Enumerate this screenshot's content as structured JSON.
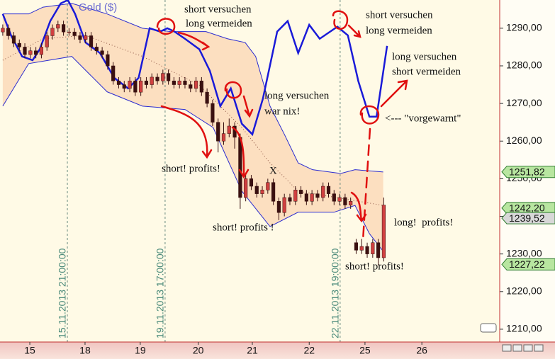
{
  "chart_data": {
    "type": "candlestick",
    "title": "Gold ($)",
    "open": [
      1289,
      1290,
      1288,
      1286,
      1285,
      1283,
      1284,
      1283,
      1285,
      1288,
      1290,
      1291,
      1289,
      1289,
      1288,
      1287,
      1288,
      1285,
      1284,
      1283,
      1280,
      1276,
      1275,
      1274,
      1276,
      1273,
      1276,
      1275,
      1277,
      1276,
      1278,
      1276,
      1275,
      1276,
      1275,
      1274,
      1276,
      1273,
      1270,
      1265,
      1260,
      1262,
      1264,
      1261,
      1245,
      1250,
      1248,
      1246,
      1247,
      1249,
      1244,
      1241,
      1245,
      1244,
      1247,
      1246,
      1244,
      1246,
      1245,
      1248,
      1246,
      1244,
      1245,
      1243,
      1233,
      1231,
      1232,
      1230,
      1233,
      1229
    ],
    "high": [
      1291,
      1291,
      1289,
      1287,
      1286,
      1285,
      1285,
      1286,
      1289,
      1291,
      1292,
      1292,
      1290,
      1290,
      1289,
      1289,
      1289,
      1286,
      1285,
      1284,
      1281,
      1277,
      1276,
      1277,
      1277,
      1277,
      1277,
      1278,
      1278,
      1279,
      1279,
      1277,
      1277,
      1277,
      1276,
      1277,
      1277,
      1274,
      1271,
      1266,
      1265,
      1266,
      1265,
      1262,
      1251,
      1251,
      1249,
      1248,
      1250,
      1250,
      1245,
      1246,
      1246,
      1248,
      1248,
      1247,
      1247,
      1247,
      1249,
      1249,
      1247,
      1246,
      1246,
      1245,
      1234,
      1234,
      1233,
      1234,
      1234,
      1245
    ],
    "low": [
      1288,
      1287,
      1285,
      1284,
      1282,
      1282,
      1282,
      1282,
      1284,
      1287,
      1289,
      1288,
      1288,
      1287,
      1286,
      1286,
      1284,
      1283,
      1282,
      1279,
      1275,
      1274,
      1273,
      1273,
      1272,
      1272,
      1274,
      1274,
      1275,
      1275,
      1275,
      1274,
      1274,
      1274,
      1273,
      1273,
      1272,
      1269,
      1264,
      1257,
      1259,
      1261,
      1258,
      1242,
      1244,
      1247,
      1245,
      1245,
      1246,
      1243,
      1239,
      1240,
      1243,
      1243,
      1245,
      1243,
      1243,
      1244,
      1244,
      1245,
      1243,
      1243,
      1242,
      1242,
      1230,
      1230,
      1229,
      1229,
      1227,
      1228
    ],
    "close": [
      1290,
      1288,
      1286,
      1285,
      1283,
      1284,
      1283,
      1285,
      1288,
      1290,
      1291,
      1289,
      1289,
      1288,
      1287,
      1288,
      1285,
      1284,
      1283,
      1280,
      1276,
      1275,
      1274,
      1276,
      1273,
      1276,
      1275,
      1277,
      1276,
      1278,
      1276,
      1275,
      1276,
      1275,
      1274,
      1276,
      1273,
      1270,
      1265,
      1260,
      1262,
      1264,
      1261,
      1245,
      1250,
      1248,
      1246,
      1247,
      1249,
      1244,
      1241,
      1245,
      1244,
      1247,
      1246,
      1244,
      1246,
      1245,
      1248,
      1246,
      1244,
      1245,
      1243,
      1244,
      1231,
      1232,
      1230,
      1233,
      1229,
      1243
    ],
    "up_color": "#d04040",
    "down_color": "#3a1010",
    "lines": [
      {
        "color": "#2b2bd0",
        "x": [
          0,
          4.7,
          7.3,
          12.5,
          18.9,
          25.3,
          30.4,
          36.8,
          40.7,
          43.9,
          45.8,
          48.4,
          51,
          53.5,
          56.1,
          61.2,
          63.8,
          68.9
        ],
        "values": [
          1293.8,
          1293.8,
          1295.6,
          1296.6,
          1293.8,
          1290,
          1289.1,
          1289.1,
          1287.2,
          1286.2,
          1282.5,
          1269.3,
          1261.8,
          1254.2,
          1252.4,
          1251.4,
          1252.4,
          1251.8
        ]
      },
      {
        "color": "#2b2bd0",
        "x": [
          0,
          4.7,
          12.5,
          18.9,
          25.3,
          33,
          38.1,
          43.3,
          48.4,
          53.5,
          60,
          63.8,
          66.4,
          68.9
        ],
        "values": [
          1269.3,
          1280.6,
          1282.5,
          1273.1,
          1269.3,
          1268.4,
          1263.6,
          1246.7,
          1237.3,
          1241.1,
          1241.1,
          1242.9,
          1235.4,
          1230.7
        ]
      },
      {
        "color": "#8a5040",
        "dotted": true,
        "x": [
          0,
          7.3,
          15,
          25.3,
          35.6,
          43.3,
          48.4,
          53.5,
          61.2,
          68.9
        ],
        "values": [
          1281.5,
          1287.2,
          1288.1,
          1282.5,
          1274.9,
          1263.6,
          1254.2,
          1246.7,
          1244.8,
          1242.9
        ]
      },
      {
        "color": "#1a1ad8",
        "width": 2.5,
        "x": [
          0,
          1.5,
          3.5,
          5.4,
          6.7,
          8.6,
          10.5,
          11.8,
          13.1,
          15,
          17.6,
          20.2,
          22.7,
          24.6,
          26.6,
          28.5,
          29.8,
          31.1,
          33,
          35.6,
          37.5,
          39.4,
          41.3,
          43.3,
          45.2,
          47.1,
          49.7,
          51.6,
          53.5,
          55.5,
          57.4,
          59.3,
          60.6,
          62.5,
          64.4,
          66.4,
          67.7,
          69.6
        ],
        "values": [
          1293.8,
          1288.1,
          1282.5,
          1281.5,
          1284.4,
          1291.9,
          1296.6,
          1297.5,
          1293.8,
          1286.2,
          1283.4,
          1276.8,
          1274,
          1276.8,
          1290,
          1289.1,
          1290,
          1289.1,
          1287.2,
          1284.4,
          1278.7,
          1269.3,
          1274,
          1264.6,
          1261.8,
          1271.2,
          1289.1,
          1291.9,
          1283.4,
          1290.9,
          1287.2,
          1289.1,
          1290.4,
          1288.1,
          1275.9,
          1266.5,
          1266.5,
          1285.3
        ]
      }
    ],
    "band_fill": "#fbd9b8",
    "xlim": [
      -0.5,
      90
    ],
    "ylim": [
      1206.6,
      1297.5
    ],
    "yticks": [
      {
        "value": 1210,
        "label": "1210,00"
      },
      {
        "value": 1220,
        "label": "1220,00"
      },
      {
        "value": 1230,
        "label": "1230,00"
      },
      {
        "value": 1240,
        "label": "1240,00"
      },
      {
        "value": 1250,
        "label": "1250,00"
      },
      {
        "value": 1260,
        "label": "1260,00"
      },
      {
        "value": 1270,
        "label": "1270,00"
      },
      {
        "value": 1280,
        "label": "1280,00"
      },
      {
        "value": 1290,
        "label": "1290,00"
      }
    ],
    "xticks": [
      {
        "value": 4.9,
        "label": "15"
      },
      {
        "value": 14.9,
        "label": "18"
      },
      {
        "value": 24.9,
        "label": "19"
      },
      {
        "value": 35.4,
        "label": "20"
      },
      {
        "value": 45.2,
        "label": "21"
      },
      {
        "value": 55.5,
        "label": "22"
      },
      {
        "value": 65.6,
        "label": "25"
      },
      {
        "value": 75.9,
        "label": "26"
      }
    ],
    "vlines": [
      {
        "x": 11.7,
        "label": "15.11.2013 21:00:00"
      },
      {
        "x": 29.4,
        "label": "19.11.2013 17:00:00"
      },
      {
        "x": 61.1,
        "label": "22.11.2013 19:00:00"
      }
    ],
    "price_tags": [
      {
        "value": 1251.82,
        "label": "1251,82",
        "color": "#b8e6a0"
      },
      {
        "value": 1242.2,
        "label": "1242,20",
        "color": "#b8e6a0"
      },
      {
        "value": 1239.52,
        "label": "1239,52",
        "color": "#d8d8d8"
      },
      {
        "value": 1227.22,
        "label": "1227,22",
        "color": "#b8e6a0"
      }
    ],
    "annotations": [
      "short versuchen",
      "long vermeiden",
      "short versuchen",
      "long vermeiden",
      "long versuchen",
      "short vermeiden",
      "long versuchen",
      "war nix!",
      "<--- \"vorgewarnt\"",
      "short! profits!",
      "X",
      "short! profits !",
      "long!  profits!",
      "short! profits!"
    ]
  }
}
